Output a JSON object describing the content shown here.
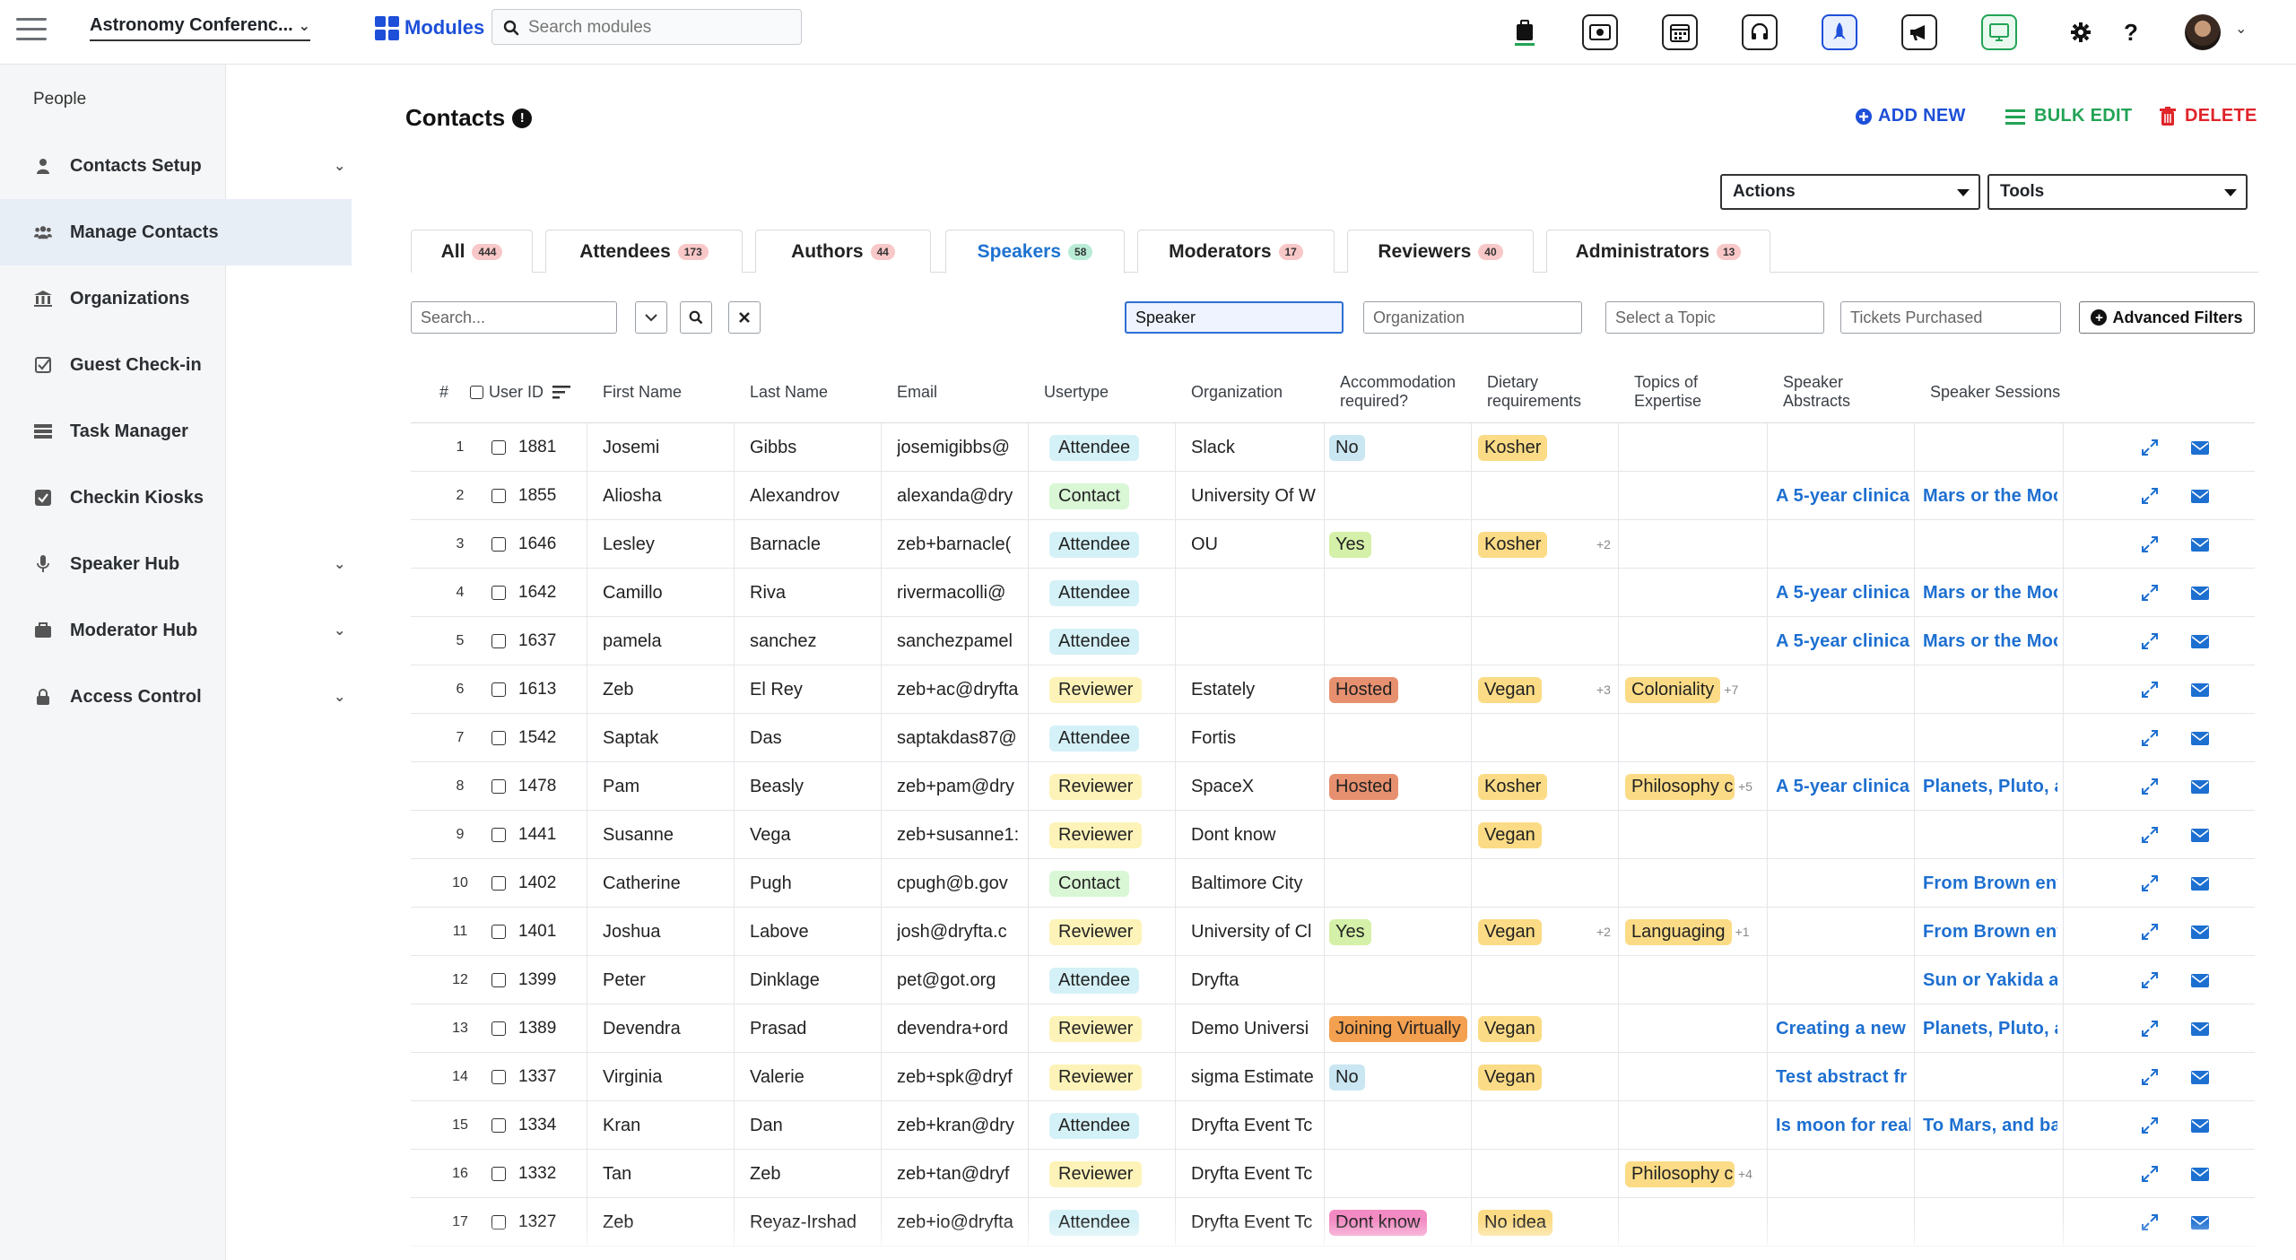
{
  "topbar": {
    "event_name": "Astronomy Conferenc...",
    "modules_label": "Modules",
    "search_placeholder": "Search modules",
    "icons": [
      "briefcase-icon",
      "ticket-icon",
      "calendar-icon",
      "headset-icon",
      "rocket-icon",
      "megaphone-icon",
      "monitor-icon",
      "gear-icon",
      "help-icon"
    ]
  },
  "sidebar": {
    "heading": "People",
    "items": [
      {
        "label": "Contacts Setup",
        "icon": "person-icon",
        "expandable": true
      },
      {
        "label": "Manage Contacts",
        "icon": "people-icon",
        "expandable": false,
        "active": true
      },
      {
        "label": "Organizations",
        "icon": "building-icon",
        "expandable": false
      },
      {
        "label": "Guest Check-in",
        "icon": "checkbox-icon",
        "expandable": false
      },
      {
        "label": "Task Manager",
        "icon": "tasks-icon",
        "expandable": false
      },
      {
        "label": "Checkin Kiosks",
        "icon": "check-square-icon",
        "expandable": false
      },
      {
        "label": "Speaker Hub",
        "icon": "microphone-icon",
        "expandable": true
      },
      {
        "label": "Moderator Hub",
        "icon": "briefcase-icon",
        "expandable": true
      },
      {
        "label": "Access Control",
        "icon": "lock-icon",
        "expandable": true
      }
    ]
  },
  "page": {
    "title": "Contacts",
    "add_new": "ADD NEW",
    "bulk_edit": "BULK EDIT",
    "delete": "DELETE",
    "actions_select": "Actions",
    "tools_select": "Tools"
  },
  "tabs": [
    {
      "label": "All",
      "count": "444"
    },
    {
      "label": "Attendees",
      "count": "173"
    },
    {
      "label": "Authors",
      "count": "44"
    },
    {
      "label": "Speakers",
      "count": "58",
      "active": true
    },
    {
      "label": "Moderators",
      "count": "17"
    },
    {
      "label": "Reviewers",
      "count": "40"
    },
    {
      "label": "Administrators",
      "count": "13"
    }
  ],
  "filters": {
    "search_placeholder": "Search...",
    "usertype_value": "Speaker",
    "organization_placeholder": "Organization",
    "topic_placeholder": "Select a Topic",
    "tickets_placeholder": "Tickets Purchased",
    "advanced_label": "Advanced Filters"
  },
  "columns": {
    "num": "#",
    "user_id": "User ID",
    "first_name": "First Name",
    "last_name": "Last Name",
    "email": "Email",
    "usertype": "Usertype",
    "organization": "Organization",
    "accommodation": "Accommodation required?",
    "dietary": "Dietary requirements",
    "topics": "Topics of Expertise",
    "abstracts": "Speaker Abstracts",
    "sessions": "Speaker Sessions"
  },
  "colors": {
    "accent": "#1d4fd8",
    "green": "#22a355",
    "red": "#e0242a",
    "link": "#1d6fd0"
  },
  "rows": [
    {
      "n": "1",
      "id": "1881",
      "first": "Josemi",
      "last": "Gibbs",
      "email": "josemigibbs@",
      "type": "Attendee",
      "org": "Slack",
      "acc": "No",
      "diet": "Kosher",
      "dietMore": "",
      "topic": "",
      "topicMore": "",
      "abstract": "",
      "session": ""
    },
    {
      "n": "2",
      "id": "1855",
      "first": "Aliosha",
      "last": "Alexandrov",
      "email": "alexanda@dry",
      "type": "Contact",
      "org": "University Of W",
      "acc": "",
      "diet": "",
      "dietMore": "",
      "topic": "",
      "topicMore": "",
      "abstract": "A 5-year clinical",
      "session": "Mars or the Moo"
    },
    {
      "n": "3",
      "id": "1646",
      "first": "Lesley",
      "last": "Barnacle",
      "email": "zeb+barnacle(",
      "type": "Attendee",
      "org": "OU",
      "acc": "Yes",
      "diet": "Kosher",
      "dietMore": "+2",
      "topic": "",
      "topicMore": "",
      "abstract": "",
      "session": ""
    },
    {
      "n": "4",
      "id": "1642",
      "first": "Camillo",
      "last": "Riva",
      "email": "rivermacolli@",
      "type": "Attendee",
      "org": "",
      "acc": "",
      "diet": "",
      "dietMore": "",
      "topic": "",
      "topicMore": "",
      "abstract": "A 5-year clinical",
      "session": "Mars or the Moo"
    },
    {
      "n": "5",
      "id": "1637",
      "first": "pamela",
      "last": "sanchez",
      "email": "sanchezpamel",
      "type": "Attendee",
      "org": "",
      "acc": "",
      "diet": "",
      "dietMore": "",
      "topic": "",
      "topicMore": "",
      "abstract": "A 5-year clinical",
      "session": "Mars or the Moo"
    },
    {
      "n": "6",
      "id": "1613",
      "first": "Zeb",
      "last": "El Rey",
      "email": "zeb+ac@dryfta",
      "type": "Reviewer",
      "org": "Estately",
      "acc": "Hosted",
      "diet": "Vegan",
      "dietMore": "+3",
      "topic": "Coloniality",
      "topicMore": "+7",
      "abstract": "",
      "session": ""
    },
    {
      "n": "7",
      "id": "1542",
      "first": "Saptak",
      "last": "Das",
      "email": "saptakdas87@",
      "type": "Attendee",
      "org": "Fortis",
      "acc": "",
      "diet": "",
      "dietMore": "",
      "topic": "",
      "topicMore": "",
      "abstract": "",
      "session": ""
    },
    {
      "n": "8",
      "id": "1478",
      "first": "Pam",
      "last": "Beasly",
      "email": "zeb+pam@dry",
      "type": "Reviewer",
      "org": "SpaceX",
      "acc": "Hosted",
      "diet": "Kosher",
      "dietMore": "",
      "topic": "Philosophy c",
      "topicMore": "+5",
      "abstract": "A 5-year clinical",
      "session": "Planets, Pluto, a"
    },
    {
      "n": "9",
      "id": "1441",
      "first": "Susanne",
      "last": "Vega",
      "email": "zeb+susanne1:",
      "type": "Reviewer",
      "org": "Dont know",
      "acc": "",
      "diet": "Vegan",
      "dietMore": "",
      "topic": "",
      "topicMore": "",
      "abstract": "",
      "session": ""
    },
    {
      "n": "10",
      "id": "1402",
      "first": "Catherine",
      "last": "Pugh",
      "email": "cpugh@b.gov",
      "type": "Contact",
      "org": "Baltimore City",
      "acc": "",
      "diet": "",
      "dietMore": "",
      "topic": "",
      "topicMore": "",
      "abstract": "",
      "session": "From Brown env"
    },
    {
      "n": "11",
      "id": "1401",
      "first": "Joshua",
      "last": "Labove",
      "email": "josh@dryfta.c",
      "type": "Reviewer",
      "org": "University of Cl",
      "acc": "Yes",
      "diet": "Vegan",
      "dietMore": "+2",
      "topic": "Languaging",
      "topicMore": "+1",
      "abstract": "",
      "session": "From Brown env"
    },
    {
      "n": "12",
      "id": "1399",
      "first": "Peter",
      "last": "Dinklage",
      "email": "pet@got.org",
      "type": "Attendee",
      "org": "Dryfta",
      "acc": "",
      "diet": "",
      "dietMore": "",
      "topic": "",
      "topicMore": "",
      "abstract": "",
      "session": "Sun or Yakida a:"
    },
    {
      "n": "13",
      "id": "1389",
      "first": "Devendra",
      "last": "Prasad",
      "email": "devendra+ord",
      "type": "Reviewer",
      "org": "Demo Universi",
      "acc": "Joining Virtually",
      "diet": "Vegan",
      "dietMore": "",
      "topic": "",
      "topicMore": "",
      "abstract": "Creating a new",
      "session": "Planets, Pluto, a"
    },
    {
      "n": "14",
      "id": "1337",
      "first": "Virginia",
      "last": "Valerie",
      "email": "zeb+spk@dryf",
      "type": "Reviewer",
      "org": "sigma Estimate",
      "acc": "No",
      "diet": "Vegan",
      "dietMore": "",
      "topic": "",
      "topicMore": "",
      "abstract": "Test abstract fr",
      "session": ""
    },
    {
      "n": "15",
      "id": "1334",
      "first": "Kran",
      "last": "Dan",
      "email": "zeb+kran@dry",
      "type": "Attendee",
      "org": "Dryfta Event Tc",
      "acc": "",
      "diet": "",
      "dietMore": "",
      "topic": "",
      "topicMore": "",
      "abstract": "Is moon for real",
      "session": "To Mars, and ba"
    },
    {
      "n": "16",
      "id": "1332",
      "first": "Tan",
      "last": "Zeb",
      "email": "zeb+tan@dryf",
      "type": "Reviewer",
      "org": "Dryfta Event Tc",
      "acc": "",
      "diet": "",
      "dietMore": "",
      "topic": "Philosophy c",
      "topicMore": "+4",
      "abstract": "",
      "session": ""
    },
    {
      "n": "17",
      "id": "1327",
      "first": "Zeb",
      "last": "Reyaz-Irshad",
      "email": "zeb+io@dryfta",
      "type": "Attendee",
      "org": "Dryfta Event Tc",
      "acc": "Dont know",
      "diet": "No idea",
      "dietMore": "",
      "topic": "",
      "topicMore": "",
      "abstract": "",
      "session": ""
    }
  ]
}
